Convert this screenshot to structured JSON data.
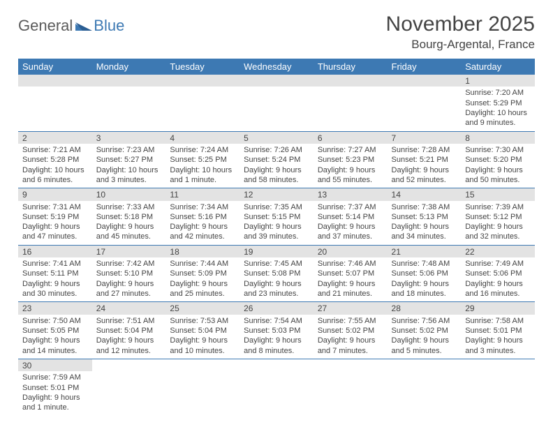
{
  "logo": {
    "word1": "General",
    "word2": "Blue"
  },
  "title": "November 2025",
  "location": "Bourg-Argental, France",
  "colors": {
    "header_bg": "#3d79b3",
    "header_fg": "#ffffff",
    "daynum_bg": "#e3e3e3",
    "row_border": "#3d79b3",
    "text": "#444444",
    "logo_gray": "#5b5b5b",
    "logo_blue": "#3d79b3"
  },
  "weekdays": [
    "Sunday",
    "Monday",
    "Tuesday",
    "Wednesday",
    "Thursday",
    "Friday",
    "Saturday"
  ],
  "weeks": [
    [
      null,
      null,
      null,
      null,
      null,
      null,
      {
        "n": "1",
        "sr": "Sunrise: 7:20 AM",
        "ss": "Sunset: 5:29 PM",
        "d1": "Daylight: 10 hours",
        "d2": "and 9 minutes."
      }
    ],
    [
      {
        "n": "2",
        "sr": "Sunrise: 7:21 AM",
        "ss": "Sunset: 5:28 PM",
        "d1": "Daylight: 10 hours",
        "d2": "and 6 minutes."
      },
      {
        "n": "3",
        "sr": "Sunrise: 7:23 AM",
        "ss": "Sunset: 5:27 PM",
        "d1": "Daylight: 10 hours",
        "d2": "and 3 minutes."
      },
      {
        "n": "4",
        "sr": "Sunrise: 7:24 AM",
        "ss": "Sunset: 5:25 PM",
        "d1": "Daylight: 10 hours",
        "d2": "and 1 minute."
      },
      {
        "n": "5",
        "sr": "Sunrise: 7:26 AM",
        "ss": "Sunset: 5:24 PM",
        "d1": "Daylight: 9 hours",
        "d2": "and 58 minutes."
      },
      {
        "n": "6",
        "sr": "Sunrise: 7:27 AM",
        "ss": "Sunset: 5:23 PM",
        "d1": "Daylight: 9 hours",
        "d2": "and 55 minutes."
      },
      {
        "n": "7",
        "sr": "Sunrise: 7:28 AM",
        "ss": "Sunset: 5:21 PM",
        "d1": "Daylight: 9 hours",
        "d2": "and 52 minutes."
      },
      {
        "n": "8",
        "sr": "Sunrise: 7:30 AM",
        "ss": "Sunset: 5:20 PM",
        "d1": "Daylight: 9 hours",
        "d2": "and 50 minutes."
      }
    ],
    [
      {
        "n": "9",
        "sr": "Sunrise: 7:31 AM",
        "ss": "Sunset: 5:19 PM",
        "d1": "Daylight: 9 hours",
        "d2": "and 47 minutes."
      },
      {
        "n": "10",
        "sr": "Sunrise: 7:33 AM",
        "ss": "Sunset: 5:18 PM",
        "d1": "Daylight: 9 hours",
        "d2": "and 45 minutes."
      },
      {
        "n": "11",
        "sr": "Sunrise: 7:34 AM",
        "ss": "Sunset: 5:16 PM",
        "d1": "Daylight: 9 hours",
        "d2": "and 42 minutes."
      },
      {
        "n": "12",
        "sr": "Sunrise: 7:35 AM",
        "ss": "Sunset: 5:15 PM",
        "d1": "Daylight: 9 hours",
        "d2": "and 39 minutes."
      },
      {
        "n": "13",
        "sr": "Sunrise: 7:37 AM",
        "ss": "Sunset: 5:14 PM",
        "d1": "Daylight: 9 hours",
        "d2": "and 37 minutes."
      },
      {
        "n": "14",
        "sr": "Sunrise: 7:38 AM",
        "ss": "Sunset: 5:13 PM",
        "d1": "Daylight: 9 hours",
        "d2": "and 34 minutes."
      },
      {
        "n": "15",
        "sr": "Sunrise: 7:39 AM",
        "ss": "Sunset: 5:12 PM",
        "d1": "Daylight: 9 hours",
        "d2": "and 32 minutes."
      }
    ],
    [
      {
        "n": "16",
        "sr": "Sunrise: 7:41 AM",
        "ss": "Sunset: 5:11 PM",
        "d1": "Daylight: 9 hours",
        "d2": "and 30 minutes."
      },
      {
        "n": "17",
        "sr": "Sunrise: 7:42 AM",
        "ss": "Sunset: 5:10 PM",
        "d1": "Daylight: 9 hours",
        "d2": "and 27 minutes."
      },
      {
        "n": "18",
        "sr": "Sunrise: 7:44 AM",
        "ss": "Sunset: 5:09 PM",
        "d1": "Daylight: 9 hours",
        "d2": "and 25 minutes."
      },
      {
        "n": "19",
        "sr": "Sunrise: 7:45 AM",
        "ss": "Sunset: 5:08 PM",
        "d1": "Daylight: 9 hours",
        "d2": "and 23 minutes."
      },
      {
        "n": "20",
        "sr": "Sunrise: 7:46 AM",
        "ss": "Sunset: 5:07 PM",
        "d1": "Daylight: 9 hours",
        "d2": "and 21 minutes."
      },
      {
        "n": "21",
        "sr": "Sunrise: 7:48 AM",
        "ss": "Sunset: 5:06 PM",
        "d1": "Daylight: 9 hours",
        "d2": "and 18 minutes."
      },
      {
        "n": "22",
        "sr": "Sunrise: 7:49 AM",
        "ss": "Sunset: 5:06 PM",
        "d1": "Daylight: 9 hours",
        "d2": "and 16 minutes."
      }
    ],
    [
      {
        "n": "23",
        "sr": "Sunrise: 7:50 AM",
        "ss": "Sunset: 5:05 PM",
        "d1": "Daylight: 9 hours",
        "d2": "and 14 minutes."
      },
      {
        "n": "24",
        "sr": "Sunrise: 7:51 AM",
        "ss": "Sunset: 5:04 PM",
        "d1": "Daylight: 9 hours",
        "d2": "and 12 minutes."
      },
      {
        "n": "25",
        "sr": "Sunrise: 7:53 AM",
        "ss": "Sunset: 5:04 PM",
        "d1": "Daylight: 9 hours",
        "d2": "and 10 minutes."
      },
      {
        "n": "26",
        "sr": "Sunrise: 7:54 AM",
        "ss": "Sunset: 5:03 PM",
        "d1": "Daylight: 9 hours",
        "d2": "and 8 minutes."
      },
      {
        "n": "27",
        "sr": "Sunrise: 7:55 AM",
        "ss": "Sunset: 5:02 PM",
        "d1": "Daylight: 9 hours",
        "d2": "and 7 minutes."
      },
      {
        "n": "28",
        "sr": "Sunrise: 7:56 AM",
        "ss": "Sunset: 5:02 PM",
        "d1": "Daylight: 9 hours",
        "d2": "and 5 minutes."
      },
      {
        "n": "29",
        "sr": "Sunrise: 7:58 AM",
        "ss": "Sunset: 5:01 PM",
        "d1": "Daylight: 9 hours",
        "d2": "and 3 minutes."
      }
    ],
    [
      {
        "n": "30",
        "sr": "Sunrise: 7:59 AM",
        "ss": "Sunset: 5:01 PM",
        "d1": "Daylight: 9 hours",
        "d2": "and 1 minute."
      },
      null,
      null,
      null,
      null,
      null,
      null
    ]
  ]
}
